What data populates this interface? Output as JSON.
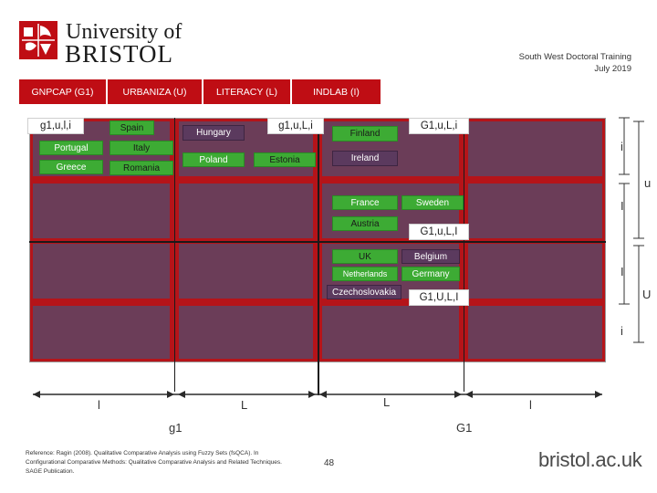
{
  "header": {
    "university_line1": "University of",
    "university_line2": "BRISTOL",
    "program": "South West Doctoral Training",
    "date": "July 2019"
  },
  "tabs": [
    {
      "label": "GNPCAP (G1)"
    },
    {
      "label": "URBANIZA (U)"
    },
    {
      "label": "LITERACY (L)"
    },
    {
      "label": "INDLAB (I)"
    }
  ],
  "groups": {
    "top_left_code": "g1,u,l,i",
    "top_mid_code": "g1,u,L,i",
    "top_right_code": "G1,u,L,i",
    "mid_code": "G1,u,L,I",
    "bottom_code": "G1,U,L,I"
  },
  "countries": {
    "spain": "Spain",
    "portugal": "Portugal",
    "italy": "Italy",
    "greece": "Greece",
    "romania": "Romania",
    "hungary": "Hungary",
    "poland": "Poland",
    "estonia": "Estonia",
    "finland": "Finland",
    "ireland": "Ireland",
    "france": "France",
    "sweden": "Sweden",
    "austria": "Austria",
    "uk": "UK",
    "belgium": "Belgium",
    "netherlands": "Netherlands",
    "germany": "Germany",
    "czechoslovakia": "Czechoslovakia"
  },
  "side_labels": {
    "i_upper": "i",
    "u_lower": "u",
    "I_upper": "I",
    "I_mid": "I",
    "U_upper": "U",
    "i_lower": "i"
  },
  "axis": {
    "l_left": "l",
    "L_mid": "L",
    "L_right": "L",
    "l_right": "l",
    "g1": "g1",
    "G1": "G1"
  },
  "colors": {
    "tab_red": "#bf0d14",
    "grid_red": "#b51419",
    "cell_purple": "#6b3d58",
    "box_green": "#3dab34",
    "box_purple": "#5b3a5e"
  },
  "footer": {
    "reference": "Reference: Ragin (2008). Qualitative Comparative Analysis using Fuzzy Sets (fsQCA). In Configurational Comparative Methods: Qualitative Comparative Analysis and Related Techniques. SAGE Publication.",
    "page": "48",
    "url": "bristol.ac.uk"
  }
}
